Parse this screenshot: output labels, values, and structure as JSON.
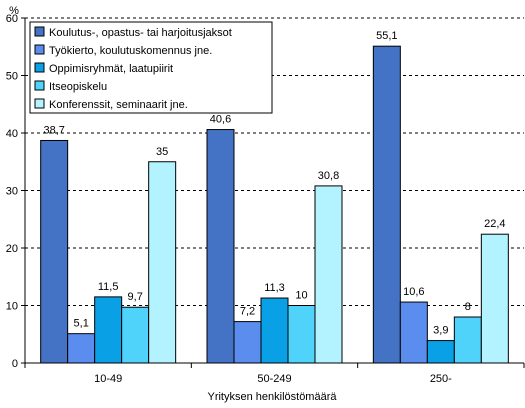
{
  "chart_data": {
    "type": "bar",
    "categories": [
      "10-49",
      "50-249",
      "250-"
    ],
    "series": [
      {
        "name": "Koulutus-, opastus- tai harjoitusjaksot",
        "values": [
          38.7,
          40.6,
          55.1
        ],
        "labels": [
          "38,7",
          "40,6",
          "55,1"
        ],
        "color": "#4472C4"
      },
      {
        "name": "Työkierto, koulutuskomennus jne.",
        "values": [
          5.1,
          7.2,
          10.6
        ],
        "labels": [
          "5,1",
          "7,2",
          "10,6"
        ],
        "color": "#5B8DEE"
      },
      {
        "name": "Oppimisryhmät, laatupiirit",
        "values": [
          11.5,
          11.3,
          3.9
        ],
        "labels": [
          "11,5",
          "11,3",
          "3,9"
        ],
        "color": "#0AA0E6"
      },
      {
        "name": "Itseopiskelu",
        "values": [
          9.7,
          10,
          8
        ],
        "labels": [
          "9,7",
          "10",
          "8"
        ],
        "color": "#4FD3FA"
      },
      {
        "name": "Konferenssit, seminaarit jne.",
        "values": [
          35,
          30.8,
          22.4
        ],
        "labels": [
          "35",
          "30,8",
          "22,4"
        ],
        "color": "#B3F3FF"
      }
    ],
    "ylim": [
      0,
      60
    ],
    "yticks": [
      0,
      10,
      20,
      30,
      40,
      50,
      60
    ],
    "ylabel": "%",
    "xlabel": "Yrityksen henkilöstömäärä",
    "legend_position": "top-left",
    "grid": "dashed horizontal"
  }
}
